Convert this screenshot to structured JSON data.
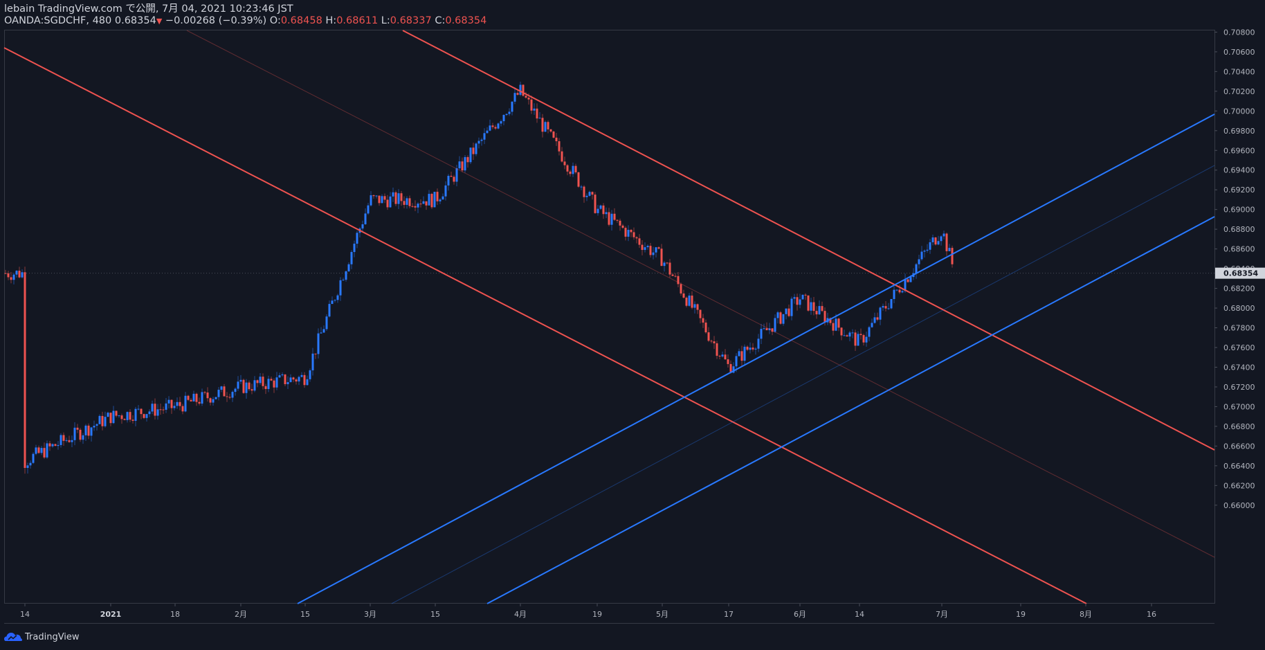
{
  "header": {
    "line1": "lebain TradingView.com で公開, 7月 04, 2021 10:23:46 JST",
    "symbol": "OANDA:SGDCHF, 480",
    "last": "0.68354",
    "arrow": "▼",
    "change": "−0.00268 (−0.39%)",
    "o_label": "O:",
    "o_value": "0.68458",
    "h_label": "H:",
    "h_value": "0.68611",
    "l_label": "L:",
    "l_value": "0.68337",
    "c_label": "C:",
    "c_value": "0.68354"
  },
  "brand": {
    "name": "TradingView"
  },
  "colors": {
    "background": "#131722",
    "up": "#2979ff",
    "down": "#ef5350",
    "axis_text": "#b2b5be",
    "grid_line": "#2a2e39"
  },
  "chart_data": {
    "type": "candlestick",
    "symbol": "OANDA:SGDCHF",
    "interval": "480",
    "x_tick_labels": [
      "14",
      "2021",
      "18",
      "2月",
      "15",
      "3月",
      "15",
      "4月",
      "19",
      "5月",
      "17",
      "6月",
      "14",
      "7月",
      "19",
      "8月",
      "16"
    ],
    "y_tick_labels": [
      "0.70800",
      "0.70600",
      "0.70400",
      "0.70200",
      "0.70000",
      "0.69800",
      "0.69600",
      "0.69400",
      "0.69200",
      "0.69000",
      "0.68800",
      "0.68600",
      "0.68400",
      "0.68200",
      "0.68000",
      "0.67800",
      "0.67600",
      "0.67400",
      "0.67200",
      "0.67000",
      "0.66800",
      "0.66600",
      "0.66400",
      "0.66200",
      "0.66000"
    ],
    "ylim": [
      0.6592,
      0.7085
    ],
    "last_price_label": "0.68354",
    "last_price": 0.68354,
    "price_path": [
      [
        "14",
        0.6645
      ],
      [
        "2021",
        0.669
      ],
      [
        "18",
        0.67
      ],
      [
        "2月",
        0.672
      ],
      [
        "15",
        0.673
      ],
      [
        "3月",
        0.691
      ],
      [
        "15",
        0.691
      ],
      [
        "4月",
        0.702
      ],
      [
        "19",
        0.69
      ],
      [
        "5月",
        0.685
      ],
      [
        "17",
        0.674
      ],
      [
        "6月",
        0.681
      ],
      [
        "14",
        0.6765
      ],
      [
        "7月",
        0.688
      ],
      [
        "7月",
        0.68354
      ]
    ],
    "trend_lines": [
      {
        "color": "#ef5350",
        "from": [
          "14",
          0.707
        ],
        "to": [
          "8月",
          0.659
        ]
      },
      {
        "color": "#ef5350",
        "from": [
          "3月",
          0.708
        ],
        "to": [
          "16",
          0.672
        ]
      },
      {
        "color": "#2979ff",
        "from": [
          "15",
          0.659
        ],
        "to": [
          "16",
          0.701
        ]
      },
      {
        "color": "#2979ff",
        "from": [
          "15",
          0.659
        ],
        "to": [
          "16",
          0.6925
        ]
      }
    ]
  }
}
